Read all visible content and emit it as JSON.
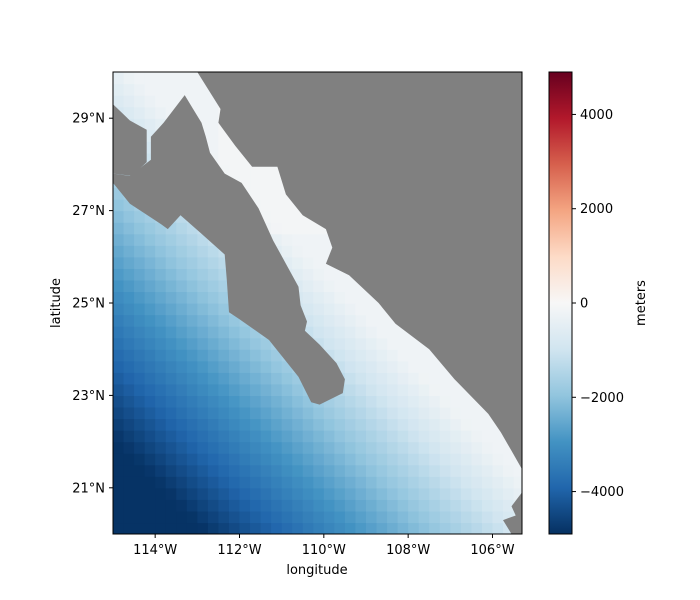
{
  "chart_data": {
    "type": "heatmap",
    "title": "",
    "xlabel": "longitude",
    "ylabel": "latitude",
    "x_range": [
      -115,
      -105.3
    ],
    "y_range": [
      20,
      30
    ],
    "x_ticks": [
      {
        "value": -114,
        "label": "114°W"
      },
      {
        "value": -112,
        "label": "112°W"
      },
      {
        "value": -110,
        "label": "110°W"
      },
      {
        "value": -108,
        "label": "108°W"
      },
      {
        "value": -106,
        "label": "106°W"
      }
    ],
    "y_ticks": [
      {
        "value": 21,
        "label": "21°N"
      },
      {
        "value": 23,
        "label": "23°N"
      },
      {
        "value": 25,
        "label": "25°N"
      },
      {
        "value": 27,
        "label": "27°N"
      },
      {
        "value": 29,
        "label": "29°N"
      }
    ],
    "colorbar": {
      "label": "meters",
      "range": [
        -4900,
        4900
      ],
      "colormap": "RdBu_r",
      "ticks": [
        {
          "value": 4000,
          "label": "4000"
        },
        {
          "value": 2000,
          "label": "2000"
        },
        {
          "value": 0,
          "label": "0"
        },
        {
          "value": -2000,
          "label": "−2000"
        },
        {
          "value": -4000,
          "label": "−4000"
        }
      ]
    },
    "land_color": "#808080",
    "bathymetry_description_samples": [
      {
        "lon": -114.9,
        "lat": 20.1,
        "meters": -4700
      },
      {
        "lon": -112,
        "lat": 21,
        "meters": -3900
      },
      {
        "lon": -110,
        "lat": 22,
        "meters": -3000
      },
      {
        "lon": -108,
        "lat": 23,
        "meters": -2000
      },
      {
        "lon": -113,
        "lat": 29.8,
        "meters": -200
      }
    ],
    "land_polygons": [
      [
        [
          -113.9,
          30
        ],
        [
          -115,
          30
        ],
        [
          -115,
          29.3
        ],
        [
          -114.6,
          28.95
        ],
        [
          -114.2,
          28.75
        ],
        [
          -114.2,
          28.05
        ],
        [
          -114.55,
          27.75
        ],
        [
          -115,
          27.8
        ],
        [
          -115,
          30
        ]
      ],
      [
        [
          -114.6,
          27.75
        ],
        [
          -114.1,
          28.1
        ],
        [
          -114.1,
          28.6
        ],
        [
          -113.8,
          28.9
        ],
        [
          -113.3,
          29.5
        ],
        [
          -113.1,
          29.2
        ],
        [
          -112.9,
          28.9
        ],
        [
          -112.8,
          28.6
        ],
        [
          -112.7,
          28.25
        ],
        [
          -112.35,
          27.8
        ],
        [
          -111.95,
          27.6
        ],
        [
          -111.55,
          27.05
        ],
        [
          -111.2,
          26.35
        ],
        [
          -110.9,
          25.85
        ],
        [
          -110.6,
          25.35
        ],
        [
          -110.55,
          24.95
        ],
        [
          -110.4,
          24.6
        ],
        [
          -110.45,
          24.4
        ],
        [
          -110.1,
          24.1
        ],
        [
          -109.7,
          23.7
        ],
        [
          -109.5,
          23.35
        ],
        [
          -109.55,
          23.05
        ],
        [
          -110.1,
          22.8
        ],
        [
          -110.3,
          22.85
        ],
        [
          -110.6,
          23.4
        ],
        [
          -111.3,
          24.2
        ],
        [
          -112.0,
          24.65
        ],
        [
          -112.25,
          24.8
        ],
        [
          -112.3,
          25.5
        ],
        [
          -112.35,
          26.05
        ],
        [
          -112.9,
          26.5
        ],
        [
          -113.4,
          26.9
        ],
        [
          -113.7,
          26.6
        ],
        [
          -113.85,
          26.7
        ],
        [
          -114.1,
          26.85
        ],
        [
          -114.6,
          27.15
        ],
        [
          -115,
          27.6
        ],
        [
          -115,
          27.8
        ],
        [
          -114.6,
          27.75
        ]
      ],
      [
        [
          -113,
          30
        ],
        [
          -112.45,
          29.2
        ],
        [
          -112.5,
          28.9
        ],
        [
          -112.1,
          28.4
        ],
        [
          -111.7,
          27.95
        ],
        [
          -111.1,
          27.95
        ],
        [
          -110.9,
          27.35
        ],
        [
          -110.5,
          26.9
        ],
        [
          -109.95,
          26.6
        ],
        [
          -109.8,
          26.2
        ],
        [
          -109.95,
          25.85
        ],
        [
          -109.4,
          25.6
        ],
        [
          -108.7,
          25.0
        ],
        [
          -108.3,
          24.55
        ],
        [
          -107.5,
          24.0
        ],
        [
          -106.9,
          23.35
        ],
        [
          -106.1,
          22.6
        ],
        [
          -105.8,
          22.2
        ],
        [
          -105.55,
          21.8
        ],
        [
          -105.3,
          21.4
        ],
        [
          -105.3,
          30
        ],
        [
          -113,
          30
        ]
      ],
      [
        [
          -105.3,
          20.9
        ],
        [
          -105.55,
          20.6
        ],
        [
          -105.45,
          20.4
        ],
        [
          -105.75,
          20.3
        ],
        [
          -105.55,
          20.0
        ],
        [
          -105.3,
          20.0
        ],
        [
          -105.3,
          20.9
        ]
      ]
    ]
  }
}
